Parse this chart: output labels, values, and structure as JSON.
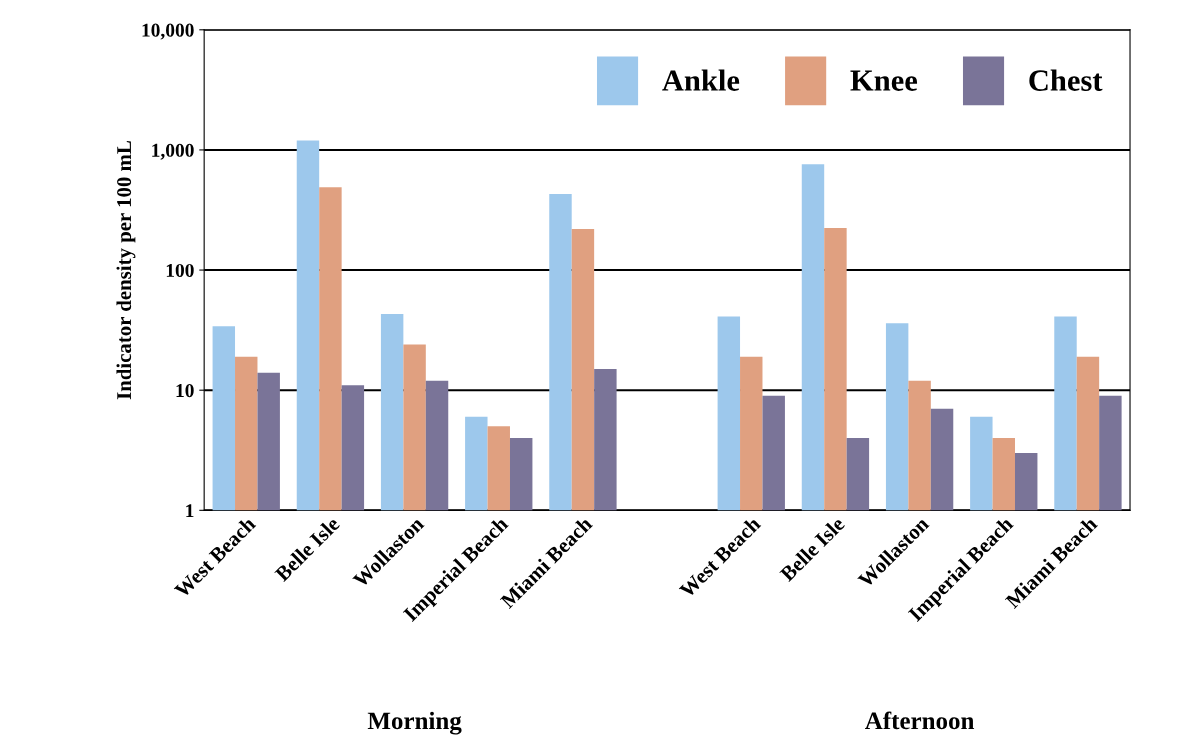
{
  "chart_data": {
    "type": "bar",
    "ylabel": "Indicator density per 100 mL",
    "categories": [
      "West Beach",
      "Belle Isle",
      "Wollaston",
      "Imperial Beach",
      "Miami Beach",
      null,
      "West Beach",
      "Belle Isle",
      "Wollaston",
      "Imperial Beach",
      "Miami Beach"
    ],
    "series": [
      {
        "name": "Ankle",
        "color": "#9dc8ec",
        "values": [
          34,
          1200,
          43,
          6,
          430,
          null,
          41,
          760,
          36,
          6,
          41
        ]
      },
      {
        "name": "Knee",
        "color": "#e0a080",
        "values": [
          19,
          490,
          24,
          5,
          220,
          null,
          19,
          224,
          12,
          4,
          19
        ]
      },
      {
        "name": "Chest",
        "color": "#7a7498",
        "values": [
          14,
          11,
          12,
          4,
          15,
          null,
          9,
          4,
          7,
          3,
          9
        ]
      }
    ],
    "log": true,
    "ylim": [
      1,
      10000
    ],
    "yticks": [
      1,
      10,
      100,
      {
        "value": 1000,
        "label": "1,000"
      },
      {
        "value": 10000,
        "label": "10,000"
      }
    ],
    "grid": "y",
    "legend": "top right",
    "annotations": [
      "Morning",
      "Afternoon"
    ]
  }
}
